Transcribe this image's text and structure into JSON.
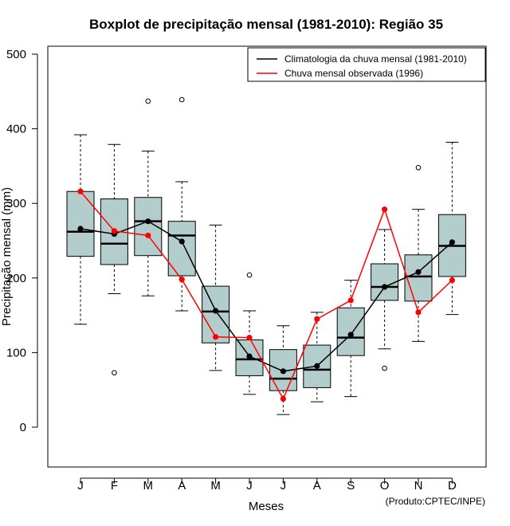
{
  "chart_data": {
    "type": "boxplot",
    "title": "Boxplot de precipitação mensal (1981-2010): Região 35",
    "xlabel": "Meses",
    "ylabel": "Precipitação mensal (mm)",
    "ylim": [
      -55,
      510
    ],
    "yticks": [
      0,
      100,
      200,
      300,
      400,
      500
    ],
    "categories": [
      "J",
      "F",
      "M",
      "A",
      "M",
      "J",
      "J",
      "A",
      "S",
      "O",
      "N",
      "D"
    ],
    "boxes": [
      {
        "whisker_low": 138,
        "q1": 229,
        "median": 262,
        "q3": 316,
        "whisker_high": 392,
        "outliers": []
      },
      {
        "whisker_low": 179,
        "q1": 218,
        "median": 246,
        "q3": 306,
        "whisker_high": 379,
        "outliers": [
          73
        ]
      },
      {
        "whisker_low": 176,
        "q1": 230,
        "median": 276,
        "q3": 308,
        "whisker_high": 370,
        "outliers": [
          437
        ]
      },
      {
        "whisker_low": 156,
        "q1": 203,
        "median": 257,
        "q3": 276,
        "whisker_high": 329,
        "outliers": [
          439
        ]
      },
      {
        "whisker_low": 76,
        "q1": 113,
        "median": 155,
        "q3": 189,
        "whisker_high": 271,
        "outliers": []
      },
      {
        "whisker_low": 44,
        "q1": 69,
        "median": 91,
        "q3": 117,
        "whisker_high": 156,
        "outliers": [
          204
        ]
      },
      {
        "whisker_low": 17,
        "q1": 49,
        "median": 65,
        "q3": 104,
        "whisker_high": 136,
        "outliers": []
      },
      {
        "whisker_low": 34,
        "q1": 53,
        "median": 77,
        "q3": 110,
        "whisker_high": 154,
        "outliers": []
      },
      {
        "whisker_low": 41,
        "q1": 96,
        "median": 120,
        "q3": 160,
        "whisker_high": 197,
        "outliers": []
      },
      {
        "whisker_low": 105,
        "q1": 170,
        "median": 188,
        "q3": 219,
        "whisker_high": 265,
        "outliers": [
          79
        ]
      },
      {
        "whisker_low": 115,
        "q1": 169,
        "median": 202,
        "q3": 231,
        "whisker_high": 292,
        "outliers": [
          348
        ]
      },
      {
        "whisker_low": 151,
        "q1": 202,
        "median": 243,
        "q3": 285,
        "whisker_high": 382,
        "outliers": []
      }
    ],
    "series": [
      {
        "name": "Climatologia da chuva mensal (1981-2010)",
        "color": "#000000",
        "values": [
          266,
          259,
          276,
          249,
          156,
          95,
          75,
          82,
          124,
          188,
          208,
          248
        ]
      },
      {
        "name": "Chuva mensal observada (1996)",
        "color": "#ff0000",
        "values": [
          316,
          263,
          257,
          198,
          121,
          120,
          38,
          145,
          170,
          292,
          154,
          197
        ]
      }
    ],
    "legend_position": "top-right",
    "box_fill": "#b3cccc",
    "credit": "(Produto:CPTEC/INPE)"
  }
}
